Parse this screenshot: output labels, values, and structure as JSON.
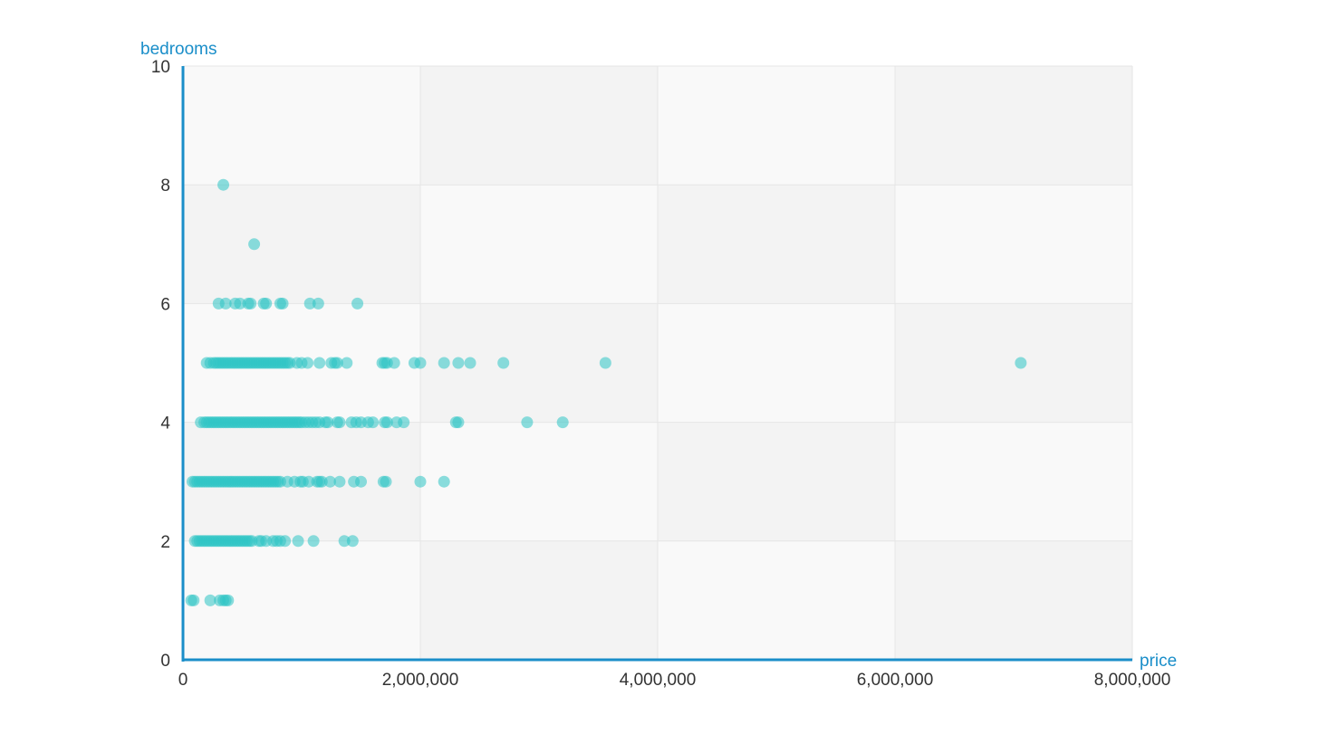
{
  "chart_data": {
    "type": "scatter",
    "xlabel": "price",
    "ylabel": "bedrooms",
    "xlim": [
      0,
      8000000
    ],
    "ylim": [
      0,
      10
    ],
    "xticks": [
      0,
      2000000,
      4000000,
      6000000,
      8000000
    ],
    "xtick_labels": [
      "0",
      "2,000,000",
      "4,000,000",
      "6,000,000",
      "8,000,000"
    ],
    "yticks": [
      0,
      2,
      4,
      6,
      8,
      10
    ],
    "ytick_labels": [
      "0",
      "2",
      "4",
      "6",
      "8",
      "10"
    ],
    "grid": true,
    "colors": {
      "point": "#2ec4c4",
      "axis": "#1a8ec9",
      "band_dark": "#f3f3f3",
      "band_light": "#f9f9f9",
      "grid": "#e6e6e6"
    },
    "series": [
      {
        "points": [
          [
            340000,
            8
          ],
          [
            600000,
            7
          ],
          [
            300000,
            6
          ],
          [
            360000,
            6
          ],
          [
            440000,
            6
          ],
          [
            480000,
            6
          ],
          [
            550000,
            6
          ],
          [
            570000,
            6
          ],
          [
            680000,
            6
          ],
          [
            700000,
            6
          ],
          [
            820000,
            6
          ],
          [
            840000,
            6
          ],
          [
            1070000,
            6
          ],
          [
            1140000,
            6
          ],
          [
            1470000,
            6
          ],
          [
            200000,
            5
          ],
          [
            230000,
            5
          ],
          [
            260000,
            5
          ],
          [
            280000,
            5
          ],
          [
            300000,
            5
          ],
          [
            320000,
            5
          ],
          [
            340000,
            5
          ],
          [
            360000,
            5
          ],
          [
            380000,
            5
          ],
          [
            400000,
            5
          ],
          [
            420000,
            5
          ],
          [
            440000,
            5
          ],
          [
            460000,
            5
          ],
          [
            480000,
            5
          ],
          [
            500000,
            5
          ],
          [
            520000,
            5
          ],
          [
            540000,
            5
          ],
          [
            560000,
            5
          ],
          [
            580000,
            5
          ],
          [
            600000,
            5
          ],
          [
            620000,
            5
          ],
          [
            640000,
            5
          ],
          [
            660000,
            5
          ],
          [
            680000,
            5
          ],
          [
            700000,
            5
          ],
          [
            720000,
            5
          ],
          [
            740000,
            5
          ],
          [
            760000,
            5
          ],
          [
            780000,
            5
          ],
          [
            800000,
            5
          ],
          [
            820000,
            5
          ],
          [
            840000,
            5
          ],
          [
            860000,
            5
          ],
          [
            880000,
            5
          ],
          [
            900000,
            5
          ],
          [
            960000,
            5
          ],
          [
            1000000,
            5
          ],
          [
            1050000,
            5
          ],
          [
            1150000,
            5
          ],
          [
            1250000,
            5
          ],
          [
            1280000,
            5
          ],
          [
            1300000,
            5
          ],
          [
            1380000,
            5
          ],
          [
            1680000,
            5
          ],
          [
            1700000,
            5
          ],
          [
            1720000,
            5
          ],
          [
            1780000,
            5
          ],
          [
            1950000,
            5
          ],
          [
            2000000,
            5
          ],
          [
            2200000,
            5
          ],
          [
            2320000,
            5
          ],
          [
            2420000,
            5
          ],
          [
            2700000,
            5
          ],
          [
            3560000,
            5
          ],
          [
            7060000,
            5
          ],
          [
            150000,
            4
          ],
          [
            180000,
            4
          ],
          [
            200000,
            4
          ],
          [
            220000,
            4
          ],
          [
            240000,
            4
          ],
          [
            260000,
            4
          ],
          [
            280000,
            4
          ],
          [
            300000,
            4
          ],
          [
            320000,
            4
          ],
          [
            340000,
            4
          ],
          [
            360000,
            4
          ],
          [
            380000,
            4
          ],
          [
            400000,
            4
          ],
          [
            420000,
            4
          ],
          [
            440000,
            4
          ],
          [
            460000,
            4
          ],
          [
            480000,
            4
          ],
          [
            500000,
            4
          ],
          [
            520000,
            4
          ],
          [
            540000,
            4
          ],
          [
            560000,
            4
          ],
          [
            580000,
            4
          ],
          [
            600000,
            4
          ],
          [
            620000,
            4
          ],
          [
            640000,
            4
          ],
          [
            660000,
            4
          ],
          [
            680000,
            4
          ],
          [
            700000,
            4
          ],
          [
            720000,
            4
          ],
          [
            740000,
            4
          ],
          [
            760000,
            4
          ],
          [
            780000,
            4
          ],
          [
            800000,
            4
          ],
          [
            820000,
            4
          ],
          [
            840000,
            4
          ],
          [
            860000,
            4
          ],
          [
            880000,
            4
          ],
          [
            900000,
            4
          ],
          [
            920000,
            4
          ],
          [
            940000,
            4
          ],
          [
            960000,
            4
          ],
          [
            980000,
            4
          ],
          [
            1000000,
            4
          ],
          [
            1030000,
            4
          ],
          [
            1060000,
            4
          ],
          [
            1090000,
            4
          ],
          [
            1120000,
            4
          ],
          [
            1150000,
            4
          ],
          [
            1200000,
            4
          ],
          [
            1220000,
            4
          ],
          [
            1300000,
            4
          ],
          [
            1320000,
            4
          ],
          [
            1420000,
            4
          ],
          [
            1460000,
            4
          ],
          [
            1500000,
            4
          ],
          [
            1560000,
            4
          ],
          [
            1600000,
            4
          ],
          [
            1700000,
            4
          ],
          [
            1720000,
            4
          ],
          [
            1800000,
            4
          ],
          [
            1860000,
            4
          ],
          [
            2300000,
            4
          ],
          [
            2320000,
            4
          ],
          [
            2900000,
            4
          ],
          [
            3200000,
            4
          ],
          [
            80000,
            3
          ],
          [
            100000,
            3
          ],
          [
            120000,
            3
          ],
          [
            140000,
            3
          ],
          [
            160000,
            3
          ],
          [
            180000,
            3
          ],
          [
            200000,
            3
          ],
          [
            220000,
            3
          ],
          [
            240000,
            3
          ],
          [
            260000,
            3
          ],
          [
            280000,
            3
          ],
          [
            300000,
            3
          ],
          [
            320000,
            3
          ],
          [
            340000,
            3
          ],
          [
            360000,
            3
          ],
          [
            380000,
            3
          ],
          [
            400000,
            3
          ],
          [
            420000,
            3
          ],
          [
            440000,
            3
          ],
          [
            460000,
            3
          ],
          [
            480000,
            3
          ],
          [
            500000,
            3
          ],
          [
            520000,
            3
          ],
          [
            540000,
            3
          ],
          [
            560000,
            3
          ],
          [
            580000,
            3
          ],
          [
            600000,
            3
          ],
          [
            620000,
            3
          ],
          [
            640000,
            3
          ],
          [
            660000,
            3
          ],
          [
            680000,
            3
          ],
          [
            700000,
            3
          ],
          [
            720000,
            3
          ],
          [
            740000,
            3
          ],
          [
            760000,
            3
          ],
          [
            780000,
            3
          ],
          [
            800000,
            3
          ],
          [
            820000,
            3
          ],
          [
            880000,
            3
          ],
          [
            940000,
            3
          ],
          [
            990000,
            3
          ],
          [
            1010000,
            3
          ],
          [
            1060000,
            3
          ],
          [
            1130000,
            3
          ],
          [
            1150000,
            3
          ],
          [
            1170000,
            3
          ],
          [
            1240000,
            3
          ],
          [
            1320000,
            3
          ],
          [
            1440000,
            3
          ],
          [
            1500000,
            3
          ],
          [
            1690000,
            3
          ],
          [
            1710000,
            3
          ],
          [
            2000000,
            3
          ],
          [
            2200000,
            3
          ],
          [
            100000,
            2
          ],
          [
            120000,
            2
          ],
          [
            140000,
            2
          ],
          [
            160000,
            2
          ],
          [
            180000,
            2
          ],
          [
            200000,
            2
          ],
          [
            220000,
            2
          ],
          [
            240000,
            2
          ],
          [
            260000,
            2
          ],
          [
            280000,
            2
          ],
          [
            300000,
            2
          ],
          [
            320000,
            2
          ],
          [
            340000,
            2
          ],
          [
            360000,
            2
          ],
          [
            380000,
            2
          ],
          [
            400000,
            2
          ],
          [
            420000,
            2
          ],
          [
            440000,
            2
          ],
          [
            460000,
            2
          ],
          [
            480000,
            2
          ],
          [
            500000,
            2
          ],
          [
            520000,
            2
          ],
          [
            540000,
            2
          ],
          [
            560000,
            2
          ],
          [
            580000,
            2
          ],
          [
            640000,
            2
          ],
          [
            660000,
            2
          ],
          [
            700000,
            2
          ],
          [
            760000,
            2
          ],
          [
            790000,
            2
          ],
          [
            820000,
            2
          ],
          [
            860000,
            2
          ],
          [
            970000,
            2
          ],
          [
            1100000,
            2
          ],
          [
            1360000,
            2
          ],
          [
            1430000,
            2
          ],
          [
            70000,
            1
          ],
          [
            90000,
            1
          ],
          [
            230000,
            1
          ],
          [
            310000,
            1
          ],
          [
            340000,
            1
          ],
          [
            360000,
            1
          ],
          [
            380000,
            1
          ]
        ]
      }
    ]
  }
}
